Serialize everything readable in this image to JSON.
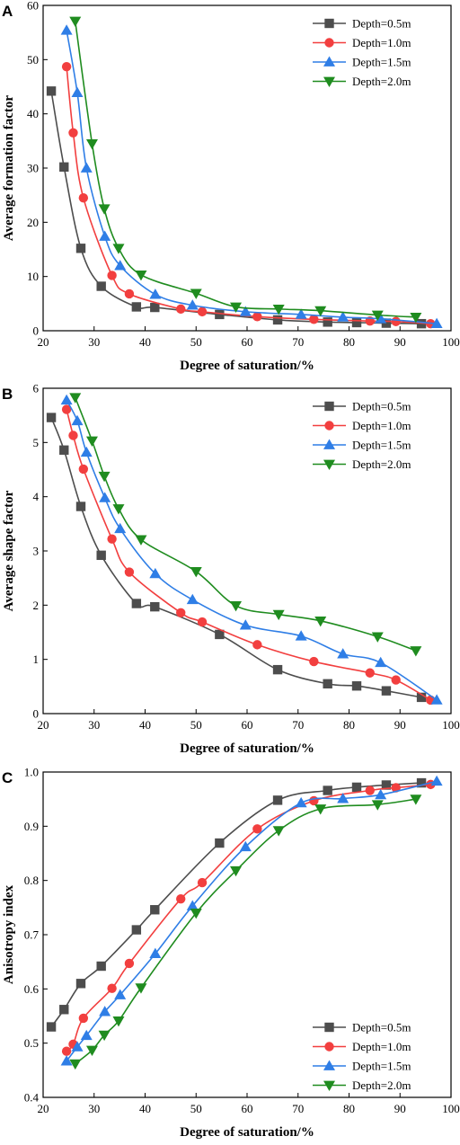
{
  "colors": {
    "Depth=0.5m": "#4d4d4d",
    "Depth=1.0m": "#f23f3f",
    "Depth=1.5m": "#2f7ee6",
    "Depth=2.0m": "#1f8c1f",
    "axis": "#000000"
  },
  "markers": {
    "Depth=0.5m": "square",
    "Depth=1.0m": "circle",
    "Depth=1.5m": "triangle-up",
    "Depth=2.0m": "triangle-down"
  },
  "chart_data": [
    {
      "panel": "A",
      "type": "line",
      "title": "",
      "xlabel": "Degree of saturation/%",
      "ylabel": "Average formation factor",
      "xlim": [
        20,
        100
      ],
      "ylim": [
        0,
        60
      ],
      "xticks": [
        "20",
        "30",
        "40",
        "50",
        "60",
        "70",
        "80",
        "90",
        "100"
      ],
      "yticks": [
        "0",
        "10",
        "20",
        "30",
        "40",
        "50",
        "60"
      ],
      "legend_position": "top-right",
      "grid": false,
      "series": [
        {
          "name": "Depth=0.5m",
          "x": [
            21.6,
            24.1,
            27.4,
            31.4,
            38.3,
            41.9,
            54.6,
            66.0,
            75.8,
            81.5,
            87.3,
            94.2
          ],
          "y": [
            44.2,
            30.2,
            15.2,
            8.2,
            4.4,
            4.3,
            3.0,
            2.0,
            1.6,
            1.5,
            1.4,
            1.3
          ]
        },
        {
          "name": "Depth=1.0m",
          "x": [
            24.6,
            25.9,
            27.9,
            33.5,
            36.9,
            47.0,
            51.2,
            62.0,
            73.1,
            84.1,
            89.2,
            96.0
          ],
          "y": [
            48.7,
            36.5,
            24.5,
            10.2,
            6.8,
            4.0,
            3.5,
            2.6,
            2.1,
            1.8,
            1.7,
            1.3
          ]
        },
        {
          "name": "Depth=1.5m",
          "x": [
            24.6,
            26.7,
            28.5,
            32.1,
            35.1,
            42.0,
            49.3,
            59.7,
            70.6,
            78.8,
            86.2,
            97.2
          ],
          "y": [
            55.4,
            43.9,
            30.0,
            17.4,
            12.0,
            6.7,
            4.7,
            3.5,
            3.0,
            2.5,
            2.2,
            1.3
          ]
        },
        {
          "name": "Depth=2.0m",
          "x": [
            26.3,
            29.6,
            32.0,
            34.8,
            39.2,
            50.0,
            57.8,
            66.2,
            74.4,
            85.6,
            93.1
          ],
          "y": [
            57.1,
            34.5,
            22.5,
            15.2,
            10.3,
            6.9,
            4.4,
            4.0,
            3.7,
            2.9,
            2.5
          ]
        }
      ]
    },
    {
      "panel": "B",
      "type": "line",
      "title": "",
      "xlabel": "Degree of saturation/%",
      "ylabel": "Average shape factor",
      "xlim": [
        20,
        100
      ],
      "ylim": [
        0,
        6
      ],
      "xticks": [
        "20",
        "30",
        "40",
        "50",
        "60",
        "70",
        "80",
        "90",
        "100"
      ],
      "yticks": [
        "0",
        "1",
        "2",
        "3",
        "4",
        "5",
        "6"
      ],
      "legend_position": "top-right",
      "grid": false,
      "series": [
        {
          "name": "Depth=0.5m",
          "x": [
            21.6,
            24.1,
            27.4,
            31.4,
            38.3,
            41.9,
            54.6,
            66.0,
            75.8,
            81.5,
            87.3,
            94.2
          ],
          "y": [
            5.46,
            4.86,
            3.82,
            2.92,
            2.03,
            1.97,
            1.46,
            0.81,
            0.55,
            0.51,
            0.42,
            0.3
          ]
        },
        {
          "name": "Depth=1.0m",
          "x": [
            24.6,
            25.9,
            27.9,
            33.5,
            36.9,
            47.0,
            51.2,
            62.0,
            73.1,
            84.1,
            89.2,
            96.0
          ],
          "y": [
            5.61,
            5.13,
            4.51,
            3.22,
            2.61,
            1.86,
            1.69,
            1.27,
            0.96,
            0.75,
            0.62,
            0.25
          ]
        },
        {
          "name": "Depth=1.5m",
          "x": [
            24.6,
            26.7,
            28.5,
            32.1,
            35.1,
            42.0,
            49.3,
            59.7,
            70.6,
            78.8,
            86.2,
            97.2
          ],
          "y": [
            5.78,
            5.4,
            4.82,
            3.98,
            3.41,
            2.58,
            2.1,
            1.63,
            1.43,
            1.1,
            0.94,
            0.25
          ]
        },
        {
          "name": "Depth=2.0m",
          "x": [
            26.3,
            29.6,
            32.0,
            34.8,
            39.2,
            50.0,
            57.8,
            66.2,
            74.4,
            85.6,
            93.1
          ],
          "y": [
            5.83,
            5.03,
            4.38,
            3.78,
            3.21,
            2.62,
            1.99,
            1.83,
            1.71,
            1.42,
            1.16
          ]
        }
      ]
    },
    {
      "panel": "C",
      "type": "line",
      "title": "",
      "xlabel": "Degree of saturation/%",
      "ylabel": "Anisotropy index",
      "xlim": [
        20,
        100
      ],
      "ylim": [
        0.4,
        1.0
      ],
      "xticks": [
        "20",
        "30",
        "40",
        "50",
        "60",
        "70",
        "80",
        "90",
        "100"
      ],
      "yticks": [
        "0.4",
        "0.5",
        "0.6",
        "0.7",
        "0.8",
        "0.9",
        "1.0"
      ],
      "legend_position": "bottom-right",
      "grid": false,
      "series": [
        {
          "name": "Depth=0.5m",
          "x": [
            21.6,
            24.1,
            27.4,
            31.4,
            38.3,
            41.9,
            54.6,
            66.0,
            75.8,
            81.5,
            87.3,
            94.2
          ],
          "y": [
            0.53,
            0.562,
            0.61,
            0.642,
            0.709,
            0.746,
            0.869,
            0.948,
            0.966,
            0.972,
            0.976,
            0.98
          ]
        },
        {
          "name": "Depth=1.0m",
          "x": [
            24.6,
            25.9,
            27.9,
            33.5,
            36.9,
            47.0,
            51.2,
            62.0,
            73.1,
            84.1,
            89.2,
            96.0
          ],
          "y": [
            0.485,
            0.498,
            0.546,
            0.601,
            0.647,
            0.766,
            0.796,
            0.895,
            0.947,
            0.966,
            0.971,
            0.977
          ]
        },
        {
          "name": "Depth=1.5m",
          "x": [
            24.6,
            26.7,
            28.5,
            32.1,
            35.1,
            42.0,
            49.3,
            59.7,
            70.6,
            78.8,
            86.2,
            97.2
          ],
          "y": [
            0.467,
            0.493,
            0.514,
            0.558,
            0.589,
            0.665,
            0.753,
            0.862,
            0.943,
            0.951,
            0.958,
            0.983
          ]
        },
        {
          "name": "Depth=2.0m",
          "x": [
            26.3,
            29.6,
            32.0,
            34.8,
            39.2,
            50.0,
            57.8,
            66.2,
            74.4,
            85.6,
            93.1
          ],
          "y": [
            0.462,
            0.487,
            0.515,
            0.541,
            0.602,
            0.74,
            0.818,
            0.892,
            0.932,
            0.94,
            0.95
          ]
        }
      ]
    }
  ]
}
